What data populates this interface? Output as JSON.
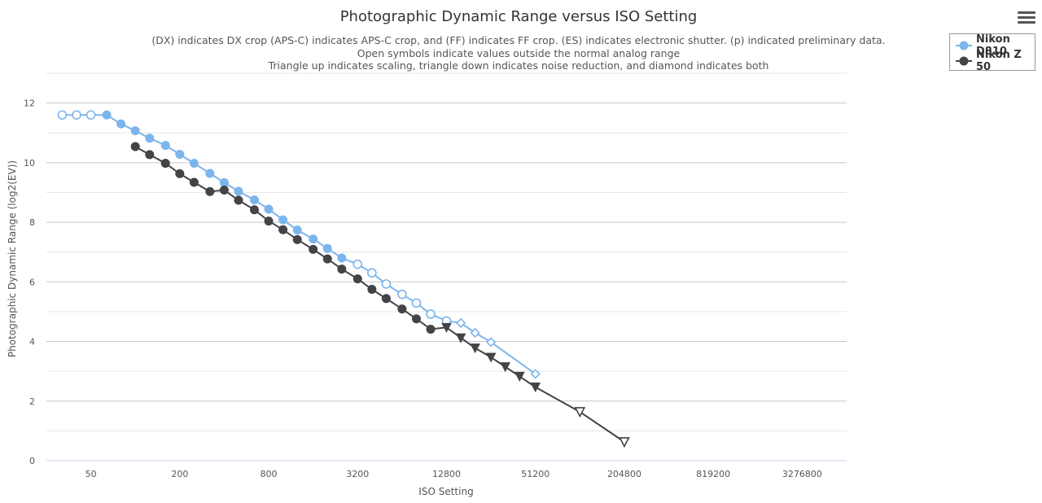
{
  "menu": {
    "icon": "hamburger-menu-icon"
  },
  "chart_data": {
    "type": "line",
    "title": "Photographic Dynamic Range versus ISO Setting",
    "subtitle": [
      "(DX) indicates DX crop (APS-C) indicates APS-C crop, and (FF) indicates FF crop. (ES) indicates electronic shutter. (p) indicated preliminary data.",
      "Open symbols indicate values outside the normal analog range",
      "Triangle up indicates scaling, triangle down indicates noise reduction, and diamond indicates both"
    ],
    "xlabel": "ISO Setting",
    "ylabel": "Photographic Dynamic Range (log2(EV))",
    "xscale": "log2",
    "xlim": [
      25,
      6553600
    ],
    "xticks": [
      50,
      200,
      800,
      3200,
      12800,
      51200,
      204800,
      819200,
      3276800
    ],
    "xtick_labels": [
      "50",
      "200",
      "800",
      "3200",
      "12800",
      "51200",
      "204800",
      "819200",
      "3276800"
    ],
    "ylim": [
      0,
      13
    ],
    "yticks": [
      0,
      2,
      4,
      6,
      8,
      10,
      12
    ],
    "ytick_labels": [
      "0",
      "2",
      "4",
      "6",
      "8",
      "10",
      "12"
    ],
    "grid": true,
    "legend_position": "top-right",
    "series": [
      {
        "name": "Nikon D810",
        "color": "#7cb5ec",
        "points": [
          {
            "x": 32,
            "y": 11.6,
            "marker": "circle-open"
          },
          {
            "x": 40,
            "y": 11.6,
            "marker": "circle-open"
          },
          {
            "x": 50,
            "y": 11.6,
            "marker": "circle-open"
          },
          {
            "x": 64,
            "y": 11.6,
            "marker": "circle"
          },
          {
            "x": 80,
            "y": 11.3,
            "marker": "circle"
          },
          {
            "x": 100,
            "y": 11.07,
            "marker": "circle"
          },
          {
            "x": 125,
            "y": 10.82,
            "marker": "circle"
          },
          {
            "x": 160,
            "y": 10.58,
            "marker": "circle"
          },
          {
            "x": 200,
            "y": 10.28,
            "marker": "circle"
          },
          {
            "x": 250,
            "y": 9.98,
            "marker": "circle"
          },
          {
            "x": 320,
            "y": 9.64,
            "marker": "circle"
          },
          {
            "x": 400,
            "y": 9.33,
            "marker": "circle"
          },
          {
            "x": 500,
            "y": 9.04,
            "marker": "circle"
          },
          {
            "x": 640,
            "y": 8.75,
            "marker": "circle"
          },
          {
            "x": 800,
            "y": 8.44,
            "marker": "circle"
          },
          {
            "x": 1000,
            "y": 8.08,
            "marker": "circle"
          },
          {
            "x": 1250,
            "y": 7.74,
            "marker": "circle"
          },
          {
            "x": 1600,
            "y": 7.44,
            "marker": "circle"
          },
          {
            "x": 2000,
            "y": 7.12,
            "marker": "circle"
          },
          {
            "x": 2500,
            "y": 6.8,
            "marker": "circle"
          },
          {
            "x": 3200,
            "y": 6.59,
            "marker": "circle-open"
          },
          {
            "x": 4000,
            "y": 6.3,
            "marker": "circle-open"
          },
          {
            "x": 5000,
            "y": 5.93,
            "marker": "circle-open"
          },
          {
            "x": 6400,
            "y": 5.58,
            "marker": "circle-open"
          },
          {
            "x": 8000,
            "y": 5.29,
            "marker": "circle-open"
          },
          {
            "x": 10000,
            "y": 4.92,
            "marker": "circle-open"
          },
          {
            "x": 12800,
            "y": 4.69,
            "marker": "circle-open"
          },
          {
            "x": 16000,
            "y": 4.62,
            "marker": "diamond-open"
          },
          {
            "x": 20000,
            "y": 4.29,
            "marker": "diamond-open"
          },
          {
            "x": 25600,
            "y": 3.98,
            "marker": "diamond-open"
          },
          {
            "x": 51200,
            "y": 2.91,
            "marker": "diamond-open"
          }
        ]
      },
      {
        "name": "Nikon Z 50",
        "color": "#434348",
        "points": [
          {
            "x": 100,
            "y": 10.54,
            "marker": "circle"
          },
          {
            "x": 125,
            "y": 10.27,
            "marker": "circle"
          },
          {
            "x": 160,
            "y": 9.98,
            "marker": "circle"
          },
          {
            "x": 200,
            "y": 9.63,
            "marker": "circle"
          },
          {
            "x": 250,
            "y": 9.34,
            "marker": "circle"
          },
          {
            "x": 320,
            "y": 9.03,
            "marker": "circle"
          },
          {
            "x": 400,
            "y": 9.08,
            "marker": "circle"
          },
          {
            "x": 500,
            "y": 8.74,
            "marker": "circle"
          },
          {
            "x": 640,
            "y": 8.42,
            "marker": "circle"
          },
          {
            "x": 800,
            "y": 8.04,
            "marker": "circle"
          },
          {
            "x": 1000,
            "y": 7.75,
            "marker": "circle"
          },
          {
            "x": 1250,
            "y": 7.42,
            "marker": "circle"
          },
          {
            "x": 1600,
            "y": 7.09,
            "marker": "circle"
          },
          {
            "x": 2000,
            "y": 6.77,
            "marker": "circle"
          },
          {
            "x": 2500,
            "y": 6.43,
            "marker": "circle"
          },
          {
            "x": 3200,
            "y": 6.1,
            "marker": "circle"
          },
          {
            "x": 4000,
            "y": 5.75,
            "marker": "circle"
          },
          {
            "x": 5000,
            "y": 5.44,
            "marker": "circle"
          },
          {
            "x": 6400,
            "y": 5.09,
            "marker": "circle"
          },
          {
            "x": 8000,
            "y": 4.76,
            "marker": "circle"
          },
          {
            "x": 10000,
            "y": 4.41,
            "marker": "circle"
          },
          {
            "x": 12800,
            "y": 4.47,
            "marker": "triangle-down"
          },
          {
            "x": 16000,
            "y": 4.12,
            "marker": "triangle-down"
          },
          {
            "x": 20000,
            "y": 3.78,
            "marker": "triangle-down"
          },
          {
            "x": 25600,
            "y": 3.47,
            "marker": "triangle-down"
          },
          {
            "x": 32000,
            "y": 3.15,
            "marker": "triangle-down"
          },
          {
            "x": 40000,
            "y": 2.83,
            "marker": "triangle-down"
          },
          {
            "x": 51200,
            "y": 2.47,
            "marker": "triangle-down"
          },
          {
            "x": 102400,
            "y": 1.64,
            "marker": "triangle-down-open"
          },
          {
            "x": 204800,
            "y": 0.63,
            "marker": "triangle-down-open"
          }
        ]
      }
    ]
  }
}
